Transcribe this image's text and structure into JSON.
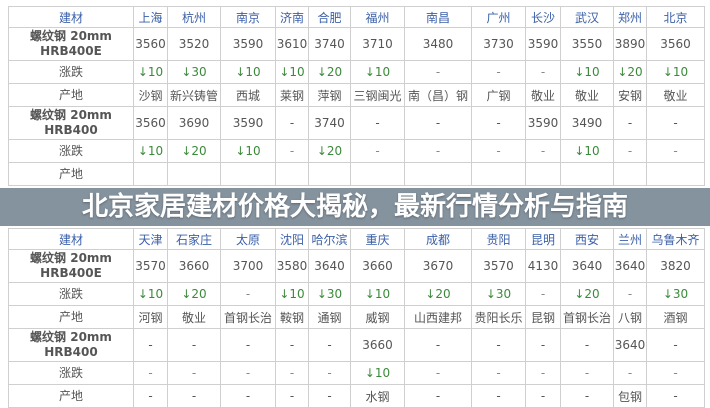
{
  "title": "北京家居建材价格大揭秘，最新行情分析与指南",
  "colors": {
    "header_label": "#c0392b",
    "city": "#3a5fa8",
    "change": "#3b8a3b",
    "overlay": "#70808e"
  },
  "tables": [
    {
      "header_label": "建材",
      "cities": [
        "上海",
        "杭州",
        "南京",
        "济南",
        "合肥",
        "福州",
        "南昌",
        "广州",
        "长沙",
        "武汉",
        "郑州",
        "北京"
      ],
      "rows": [
        {
          "type": "price",
          "label": "螺纹钢 20mm HRB400E",
          "values": [
            "3560",
            "3520",
            "3590",
            "3610",
            "3740",
            "3710",
            "3480",
            "3730",
            "3590",
            "3550",
            "3890",
            "3560"
          ]
        },
        {
          "type": "chg",
          "label": "涨跌",
          "values": [
            "↓10",
            "↓30",
            "↓10",
            "↓10",
            "↓20",
            "↓10",
            "-",
            "-",
            "-",
            "↓10",
            "↓20",
            "↓10"
          ]
        },
        {
          "type": "orig",
          "label": "产地",
          "values": [
            "沙钢",
            "新兴铸管",
            "西城",
            "莱钢",
            "萍钢",
            "三钢闽光",
            "南（昌）钢",
            "广钢",
            "敬业",
            "敬业",
            "安钢",
            "敬业"
          ]
        },
        {
          "type": "price",
          "label": "螺纹钢 20mm HRB400",
          "values": [
            "3560",
            "3690",
            "3590",
            "-",
            "3740",
            "-",
            "-",
            "-",
            "3590",
            "3490",
            "-",
            "-"
          ]
        },
        {
          "type": "chg",
          "label": "涨跌",
          "values": [
            "↓10",
            "↓20",
            "↓10",
            "-",
            "↓20",
            "-",
            "-",
            "-",
            "-",
            "↓10",
            "-",
            "-"
          ]
        },
        {
          "type": "orig",
          "label": "产地",
          "values": [
            "",
            "",
            "",
            "",
            "",
            "",
            "",
            "",
            "",
            "",
            "",
            ""
          ]
        }
      ]
    },
    {
      "header_label": "建材",
      "cities": [
        "天津",
        "石家庄",
        "太原",
        "沈阳",
        "哈尔滨",
        "重庆",
        "成都",
        "贵阳",
        "昆明",
        "西安",
        "兰州",
        "乌鲁木齐"
      ],
      "rows": [
        {
          "type": "price",
          "label": "螺纹钢 20mm HRB400E",
          "values": [
            "3570",
            "3660",
            "3700",
            "3580",
            "3640",
            "3660",
            "3670",
            "3570",
            "4130",
            "3640",
            "3640",
            "3820"
          ]
        },
        {
          "type": "chg",
          "label": "涨跌",
          "values": [
            "↓10",
            "↓20",
            "-",
            "↓10",
            "↓30",
            "↓10",
            "↓20",
            "↓30",
            "-",
            "↓20",
            "-",
            "↓30"
          ]
        },
        {
          "type": "orig",
          "label": "产地",
          "values": [
            "河钢",
            "敬业",
            "首钢长治",
            "鞍钢",
            "通钢",
            "威钢",
            "山西建邦",
            "贵阳长乐",
            "昆钢",
            "首钢长治",
            "八钢",
            "酒钢"
          ]
        },
        {
          "type": "price",
          "label": "螺纹钢 20mm HRB400",
          "values": [
            "-",
            "-",
            "-",
            "-",
            "-",
            "3660",
            "-",
            "-",
            "-",
            "-",
            "3640",
            "-"
          ]
        },
        {
          "type": "chg",
          "label": "涨跌",
          "values": [
            "-",
            "-",
            "-",
            "-",
            "-",
            "↓10",
            "-",
            "-",
            "-",
            "-",
            "-",
            "-"
          ]
        },
        {
          "type": "orig",
          "label": "产地",
          "values": [
            "-",
            "-",
            "-",
            "-",
            "-",
            "水钢",
            "-",
            "-",
            "-",
            "-",
            "包钢",
            "-"
          ]
        }
      ]
    }
  ]
}
